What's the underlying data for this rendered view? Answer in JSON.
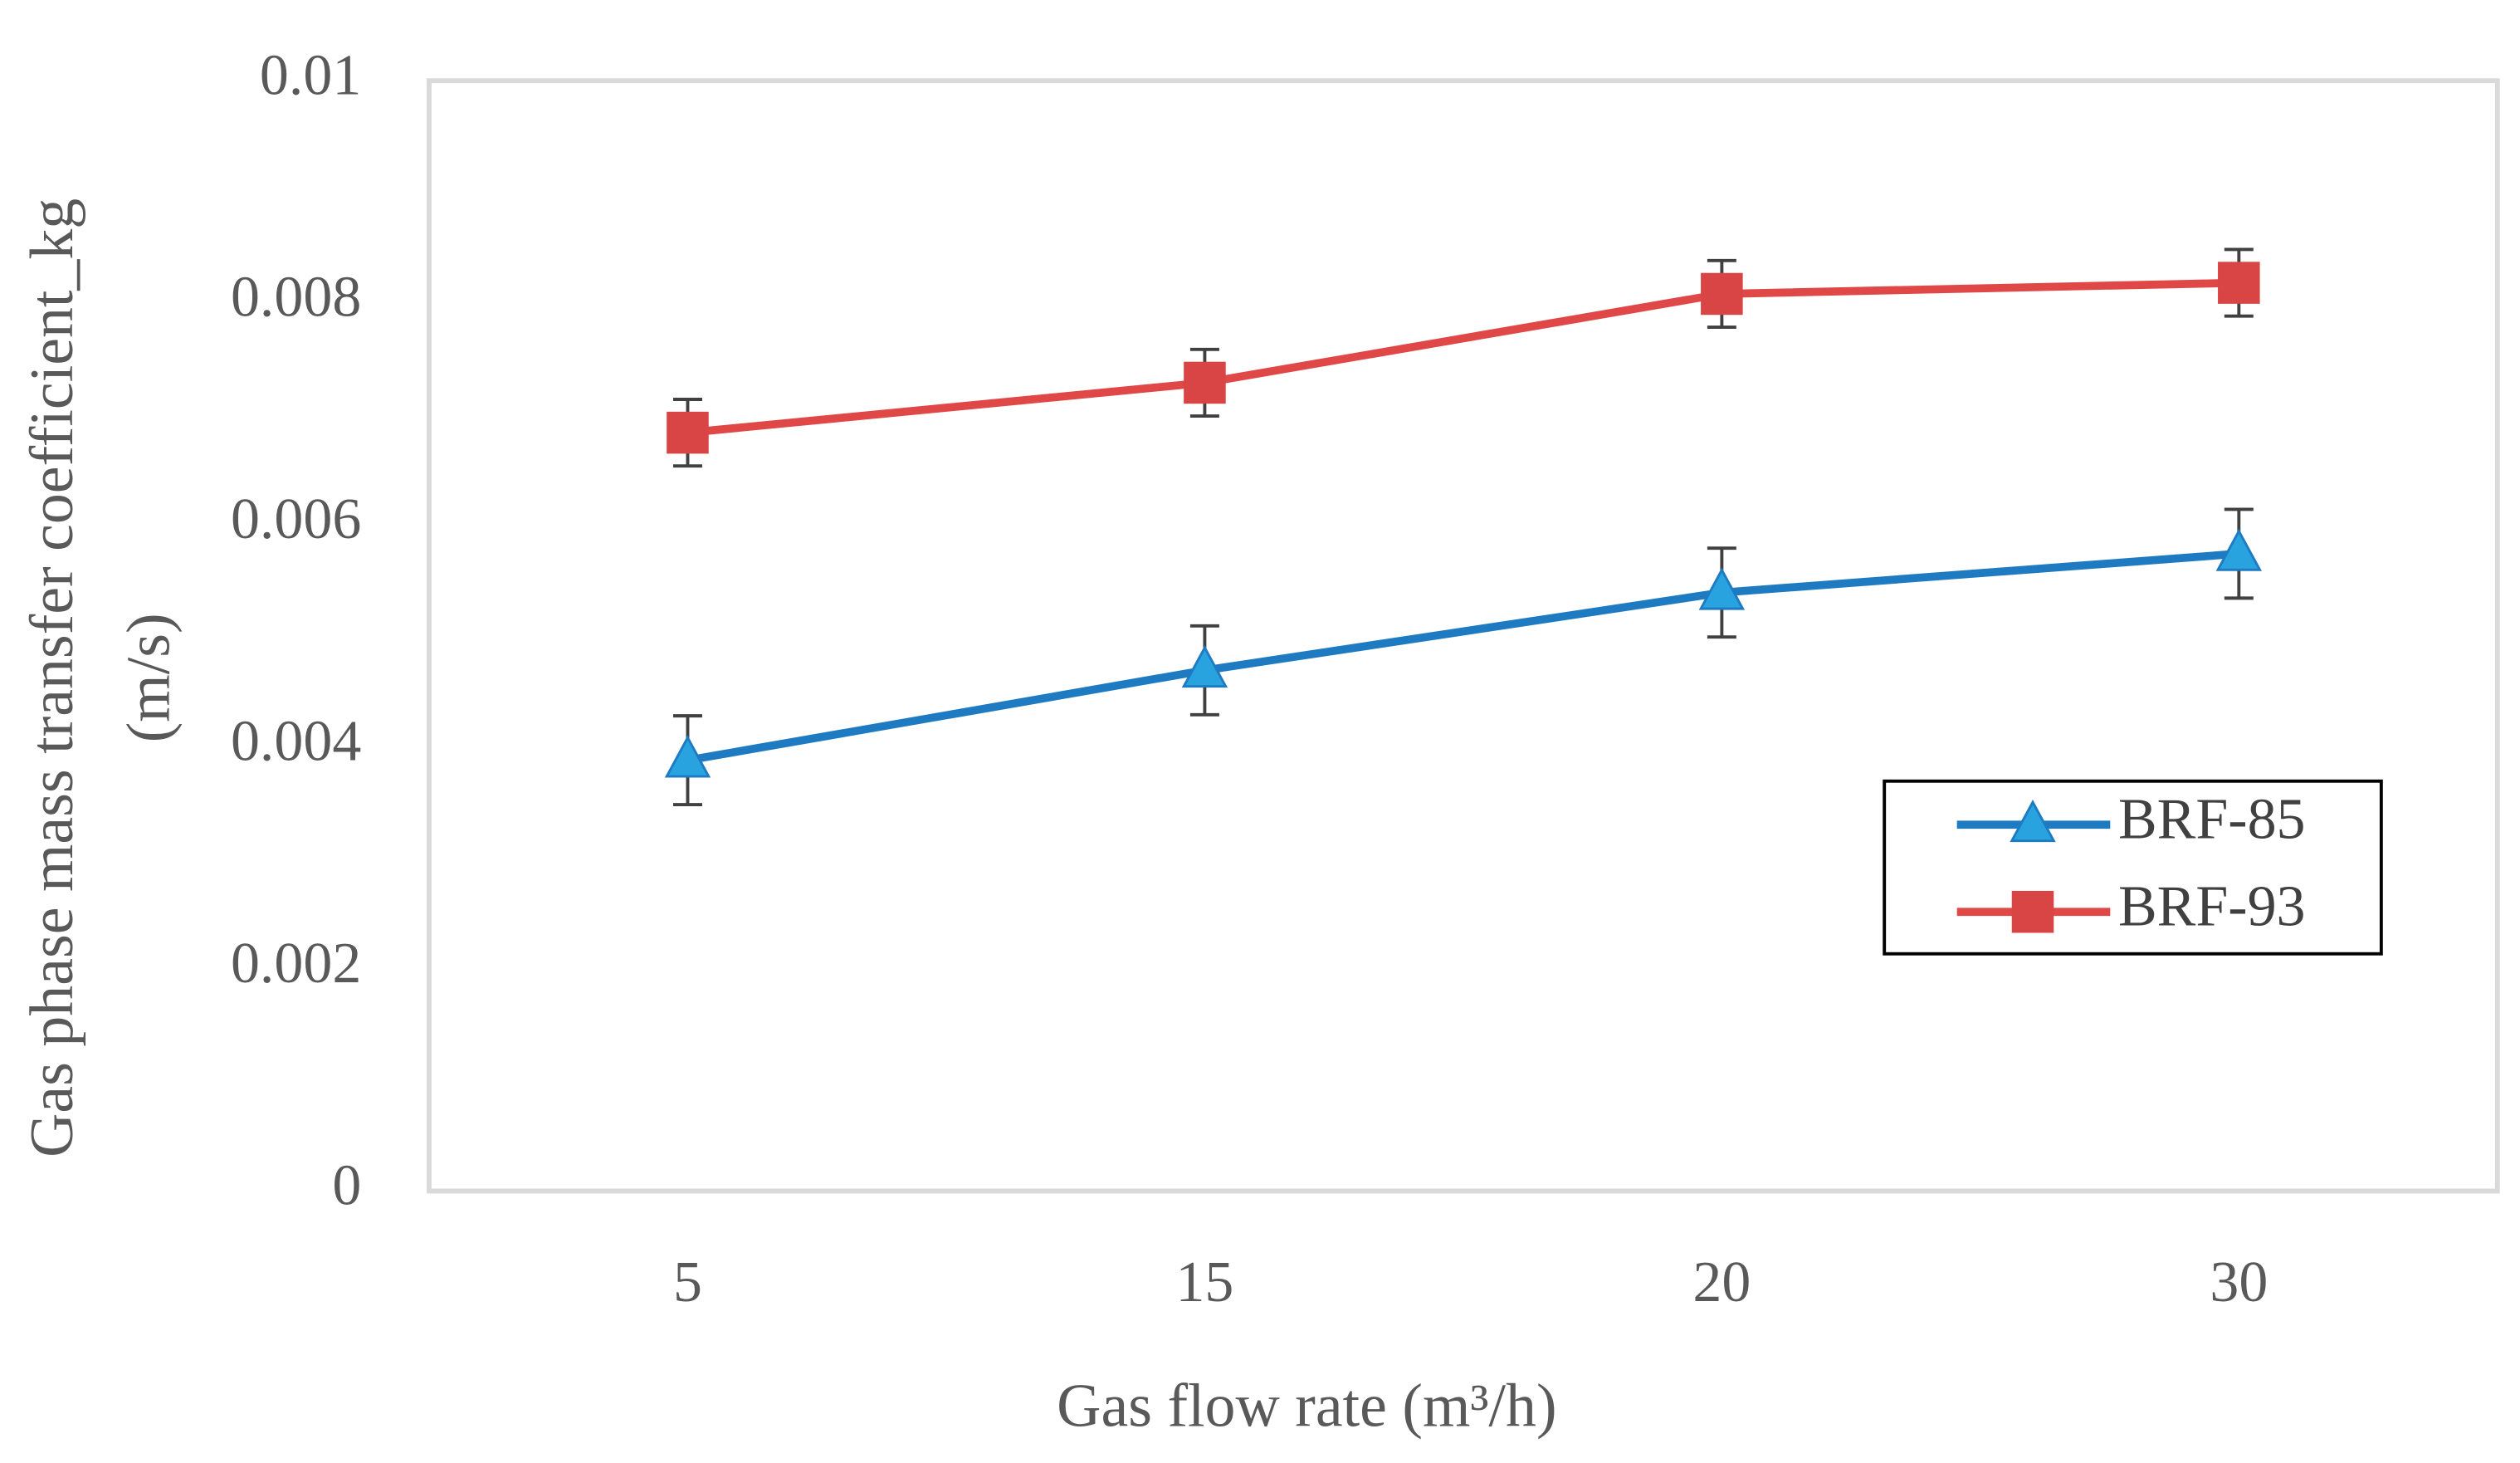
{
  "chart_data": {
    "type": "line",
    "xlabel": "Gas flow rate (m³/h)",
    "ylabel": [
      "Gas phase mass transfer coefficient_kg",
      "(m/s)"
    ],
    "categories": [
      "5",
      "15",
      "20",
      "30"
    ],
    "ylim": [
      0,
      0.01
    ],
    "yticks": [
      0,
      0.002,
      0.004,
      0.006,
      0.008,
      0.01
    ],
    "grid": false,
    "legend_position": "center right",
    "series": [
      {
        "name": "BRF-85",
        "color": "#1f7bc1",
        "marker": "triangle",
        "marker_color": "#29a3e0",
        "values": [
          0.00388,
          0.00469,
          0.00539,
          0.00574
        ],
        "errors": [
          0.0004,
          0.0004,
          0.0004,
          0.0004
        ]
      },
      {
        "name": "BRF-93",
        "color": "#e04848",
        "marker": "square",
        "marker_color": "#d94444",
        "values": [
          0.00683,
          0.00728,
          0.00808,
          0.00818
        ],
        "errors": [
          0.0003,
          0.0003,
          0.0003,
          0.0003
        ]
      }
    ]
  }
}
